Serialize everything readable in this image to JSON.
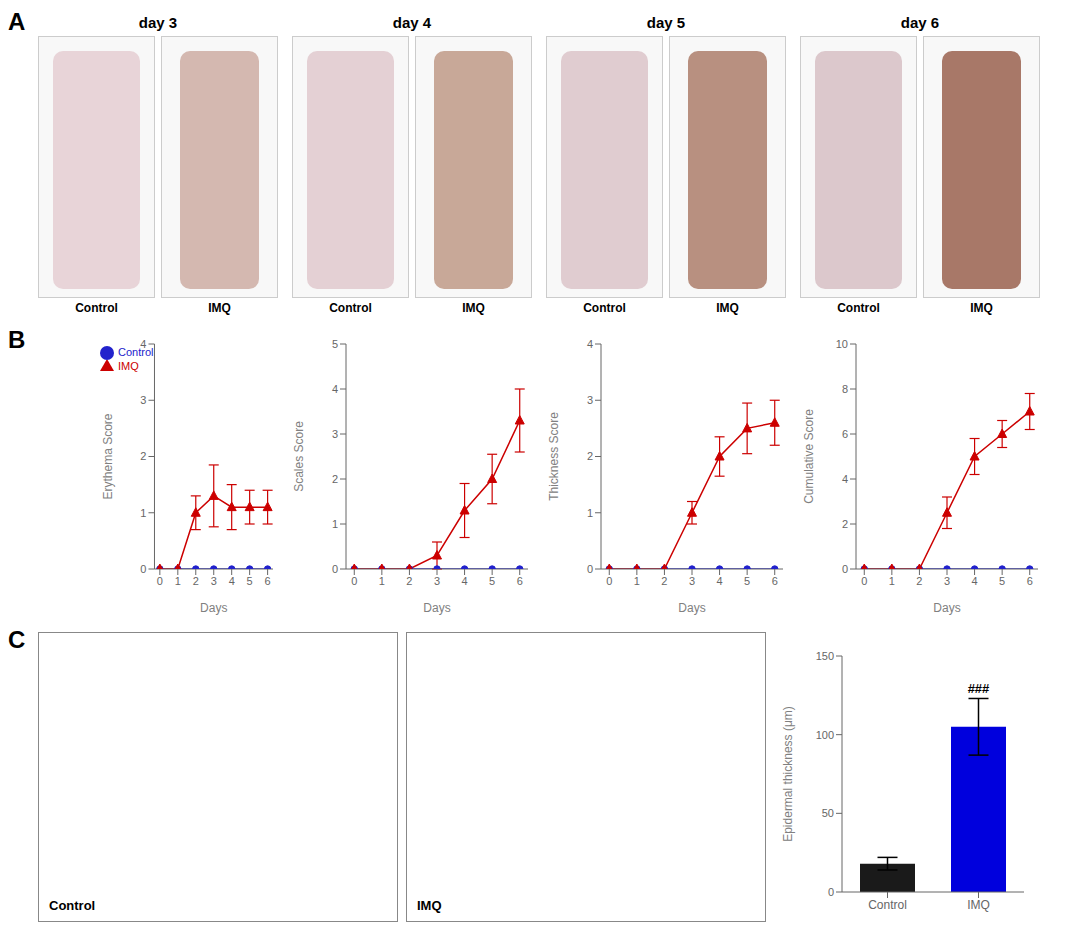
{
  "chart_data": [
    {
      "type": "photos",
      "annotations": [
        "A"
      ],
      "categories": [
        "day 3",
        "day 4",
        "day 5",
        "day 6"
      ],
      "color": "#f8f8f8",
      "series": [
        {
          "name": "Control",
          "colors": [
            "#e8d4d8",
            "#e4d0d4",
            "#e0ccd0",
            "#dcc8cc"
          ]
        },
        {
          "name": "IMQ",
          "colors": [
            "#d4b8b0",
            "#c8a898",
            "#b89080",
            "#a87868"
          ]
        }
      ]
    },
    {
      "type": "line",
      "annotations": [
        "B"
      ],
      "x": [
        0,
        1,
        2,
        3,
        4,
        5,
        6
      ],
      "xlabel": "Days",
      "ylabel": "Erythema Score",
      "xlim": [
        -0.3,
        6.3
      ],
      "xticks": [
        0,
        1,
        2,
        3,
        4,
        5,
        6
      ],
      "ylim": [
        0,
        4
      ],
      "yticks": [
        0,
        1,
        2,
        3,
        4
      ],
      "legend": "upper left",
      "series": [
        {
          "name": "Control",
          "color": "#2222cc",
          "marker": "circle",
          "values": [
            0,
            0,
            0,
            0,
            0,
            0,
            0
          ],
          "errors": [
            0,
            0,
            0,
            0,
            0,
            0,
            0
          ]
        },
        {
          "name": "IMQ",
          "color": "#cc0000",
          "marker": "triangle",
          "values": [
            0,
            0,
            1.0,
            1.3,
            1.1,
            1.1,
            1.1
          ],
          "errors": [
            0,
            0,
            0.3,
            0.55,
            0.4,
            0.3,
            0.3
          ]
        }
      ]
    },
    {
      "type": "line",
      "x": [
        0,
        1,
        2,
        3,
        4,
        5,
        6
      ],
      "xlabel": "Days",
      "ylabel": "Scales Score",
      "xlim": [
        -0.3,
        6.3
      ],
      "xticks": [
        0,
        1,
        2,
        3,
        4,
        5,
        6
      ],
      "ylim": [
        0,
        5
      ],
      "yticks": [
        0,
        1,
        2,
        3,
        4,
        5
      ],
      "series": [
        {
          "name": "Control",
          "color": "#2222cc",
          "marker": "circle",
          "values": [
            0,
            0,
            0,
            0,
            0,
            0,
            0
          ],
          "errors": [
            0,
            0,
            0,
            0,
            0,
            0,
            0
          ]
        },
        {
          "name": "IMQ",
          "color": "#cc0000",
          "marker": "triangle",
          "values": [
            0,
            0,
            0,
            0.3,
            1.3,
            2.0,
            3.3
          ],
          "errors": [
            0,
            0,
            0,
            0.3,
            0.6,
            0.55,
            0.7
          ]
        }
      ]
    },
    {
      "type": "line",
      "x": [
        0,
        1,
        2,
        3,
        4,
        5,
        6
      ],
      "xlabel": "Days",
      "ylabel": "Thickness Score",
      "xlim": [
        -0.3,
        6.3
      ],
      "xticks": [
        0,
        1,
        2,
        3,
        4,
        5,
        6
      ],
      "ylim": [
        0,
        4
      ],
      "yticks": [
        0,
        1,
        2,
        3,
        4
      ],
      "series": [
        {
          "name": "Control",
          "color": "#2222cc",
          "marker": "circle",
          "values": [
            0,
            0,
            0,
            0,
            0,
            0,
            0
          ],
          "errors": [
            0,
            0,
            0,
            0,
            0,
            0,
            0
          ]
        },
        {
          "name": "IMQ",
          "color": "#cc0000",
          "marker": "triangle",
          "values": [
            0,
            0,
            0,
            1.0,
            2.0,
            2.5,
            2.6
          ],
          "errors": [
            0,
            0,
            0,
            0.2,
            0.35,
            0.45,
            0.4
          ]
        }
      ]
    },
    {
      "type": "line",
      "x": [
        0,
        1,
        2,
        3,
        4,
        5,
        6
      ],
      "xlabel": "Days",
      "ylabel": "Cumulative Score",
      "xlim": [
        -0.3,
        6.3
      ],
      "xticks": [
        0,
        1,
        2,
        3,
        4,
        5,
        6
      ],
      "ylim": [
        0,
        10
      ],
      "yticks": [
        0,
        2,
        4,
        6,
        8,
        10
      ],
      "series": [
        {
          "name": "Control",
          "color": "#2222cc",
          "marker": "circle",
          "values": [
            0,
            0,
            0,
            0,
            0,
            0,
            0
          ],
          "errors": [
            0,
            0,
            0,
            0,
            0,
            0,
            0
          ]
        },
        {
          "name": "IMQ",
          "color": "#cc0000",
          "marker": "triangle",
          "values": [
            0,
            0,
            0,
            2.5,
            5.0,
            6.0,
            7.0
          ],
          "errors": [
            0,
            0,
            0,
            0.7,
            0.8,
            0.6,
            0.8
          ]
        }
      ]
    },
    {
      "type": "placeholder",
      "annotations": [
        "C"
      ],
      "categories": [
        "Control",
        "IMQ"
      ]
    },
    {
      "type": "bar",
      "categories": [
        "Control",
        "IMQ"
      ],
      "values": [
        18,
        105
      ],
      "errors": [
        4,
        18
      ],
      "colors": [
        "#1a1a1a",
        "#0000dd"
      ],
      "ylabel": "Epidermal thickness (μm)",
      "ylim": [
        0,
        150
      ],
      "yticks": [
        0,
        50,
        100,
        150
      ],
      "annotations": [
        {
          "text": "###",
          "category": "IMQ"
        }
      ]
    }
  ]
}
